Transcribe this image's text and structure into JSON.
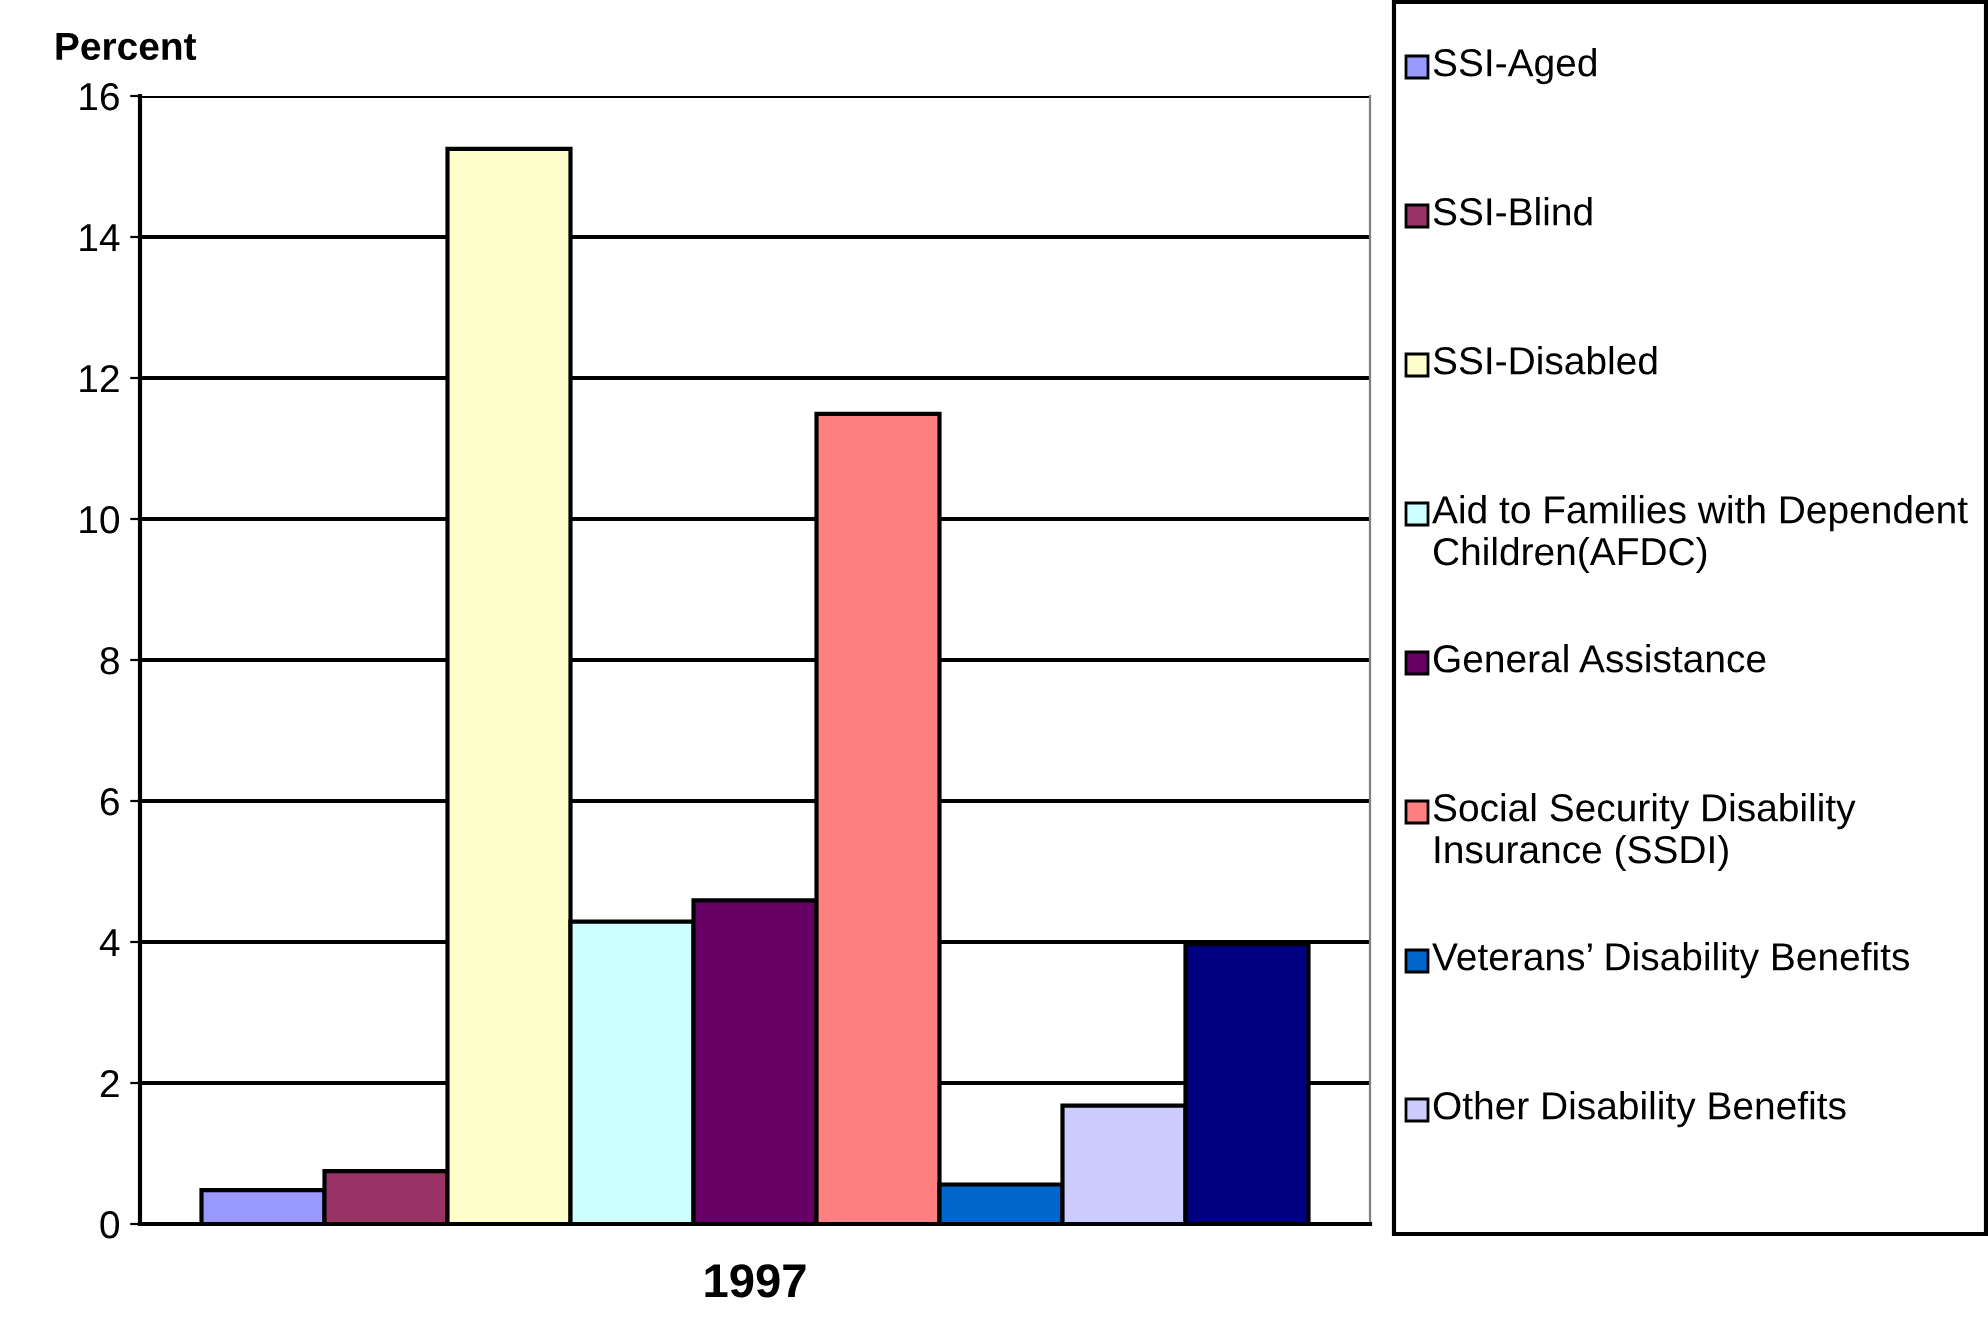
{
  "chart_data": {
    "type": "bar",
    "ylabel": "Percent",
    "categories": [
      "1997"
    ],
    "series": [
      {
        "name": "SSI-Aged",
        "color": "#9999ff",
        "values": [
          0.48
        ]
      },
      {
        "name": "SSI-Blind",
        "color": "#993366",
        "values": [
          0.75
        ]
      },
      {
        "name": "SSI-Disabled",
        "color": "#ffffcc",
        "values": [
          15.25
        ]
      },
      {
        "name": "Aid to Families with Dependent Children(AFDC)",
        "color": "#ccffff",
        "values": [
          4.29
        ]
      },
      {
        "name": "General Assistance",
        "color": "#660066",
        "values": [
          4.59
        ]
      },
      {
        "name": "Social Security Disability Insurance (SSDI)",
        "color": "#ff8080",
        "values": [
          11.49
        ]
      },
      {
        "name": "Veterans’ Disability Benefits",
        "color": "#0066cc",
        "values": [
          0.56
        ]
      },
      {
        "name": "Other Disability Benefits",
        "color": "#ccccff",
        "values": [
          1.68
        ]
      },
      {
        "color": "#000080",
        "values": [
          3.97
        ]
      }
    ],
    "ylim": [
      0,
      16
    ],
    "yticks": [
      0,
      2,
      4,
      6,
      8,
      10,
      12,
      14,
      16
    ],
    "grid": "y",
    "legend": "right"
  }
}
